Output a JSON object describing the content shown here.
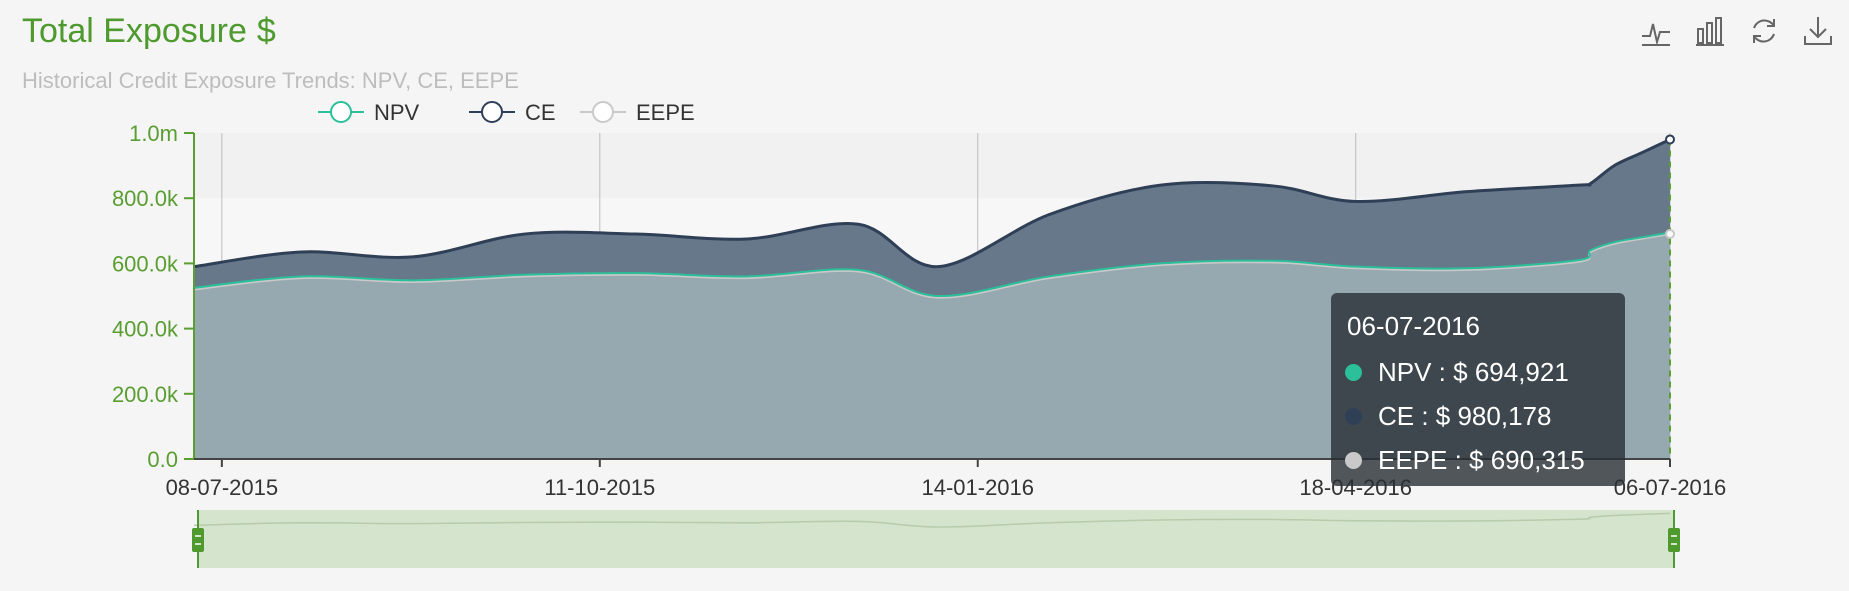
{
  "header": {
    "title": "Total Exposure",
    "currency": "$",
    "subtitle": "Historical Credit Exposure Trends: NPV, CE, EEPE"
  },
  "toolbar": {
    "icons": [
      "line-chart-icon",
      "bar-chart-icon",
      "refresh-icon",
      "download-icon"
    ]
  },
  "colors": {
    "title": "#4e9a2e",
    "axis": "#5a9e32",
    "npv": "#2bbf9a",
    "ce": "#2f3f56",
    "eepe": "#c9c9c9",
    "ce_fill": "#66788a",
    "eepe_fill": "#96a8b0",
    "navigator": "#d5e4cc"
  },
  "tooltip": {
    "date": "06-07-2016",
    "rows": [
      {
        "label": "NPV : $ 694,921",
        "color": "#2bbf9a"
      },
      {
        "label": "CE : $ 980,178",
        "color": "#2f3f56"
      },
      {
        "label": "EEPE : $ 690,315",
        "color": "#c9c9c9"
      }
    ]
  },
  "chart_data": {
    "type": "area",
    "title": "Total Exposure",
    "subtitle": "Historical Credit Exposure Trends: NPV, CE, EEPE",
    "ylim": [
      0,
      1000000
    ],
    "ytick_values": [
      0,
      200000,
      400000,
      600000,
      800000,
      1000000
    ],
    "ytick_labels": [
      "0.0",
      "200.0k",
      "400.0k",
      "600.0k",
      "800.0k",
      "1.0m"
    ],
    "xlim": [
      "2015-07-01",
      "2016-07-06"
    ],
    "xticks": [
      {
        "date": "2015-07-08",
        "label": "08-07-2015"
      },
      {
        "date": "2015-10-11",
        "label": "11-10-2015"
      },
      {
        "date": "2016-01-14",
        "label": "14-01-2016"
      },
      {
        "date": "2016-04-18",
        "label": "18-04-2016"
      },
      {
        "date": "2016-07-06",
        "label": "06-07-2016"
      }
    ],
    "legend_position": "top-left",
    "grid": "vertical",
    "x": [
      "2015-07-01",
      "2015-07-28",
      "2015-08-25",
      "2015-09-22",
      "2015-10-20",
      "2015-11-17",
      "2015-12-15",
      "2016-01-04",
      "2016-02-01",
      "2016-02-29",
      "2016-03-28",
      "2016-04-18",
      "2016-05-16",
      "2016-06-13",
      "2016-06-16",
      "2016-06-22",
      "2016-06-29",
      "2016-07-06"
    ],
    "series": [
      {
        "name": "NPV",
        "values": [
          525000,
          560000,
          548000,
          565000,
          570000,
          560000,
          580000,
          500000,
          560000,
          600000,
          608000,
          590000,
          585000,
          610000,
          640000,
          665000,
          680000,
          694921
        ]
      },
      {
        "name": "CE",
        "values": [
          590000,
          635000,
          620000,
          690000,
          690000,
          675000,
          720000,
          590000,
          750000,
          840000,
          838000,
          790000,
          820000,
          840000,
          845000,
          900000,
          940000,
          980178
        ]
      },
      {
        "name": "EEPE",
        "values": [
          520000,
          555000,
          543000,
          560000,
          565000,
          555000,
          575000,
          495000,
          555000,
          595000,
          603000,
          585000,
          580000,
          605000,
          635000,
          660000,
          676000,
          690315
        ]
      }
    ]
  }
}
